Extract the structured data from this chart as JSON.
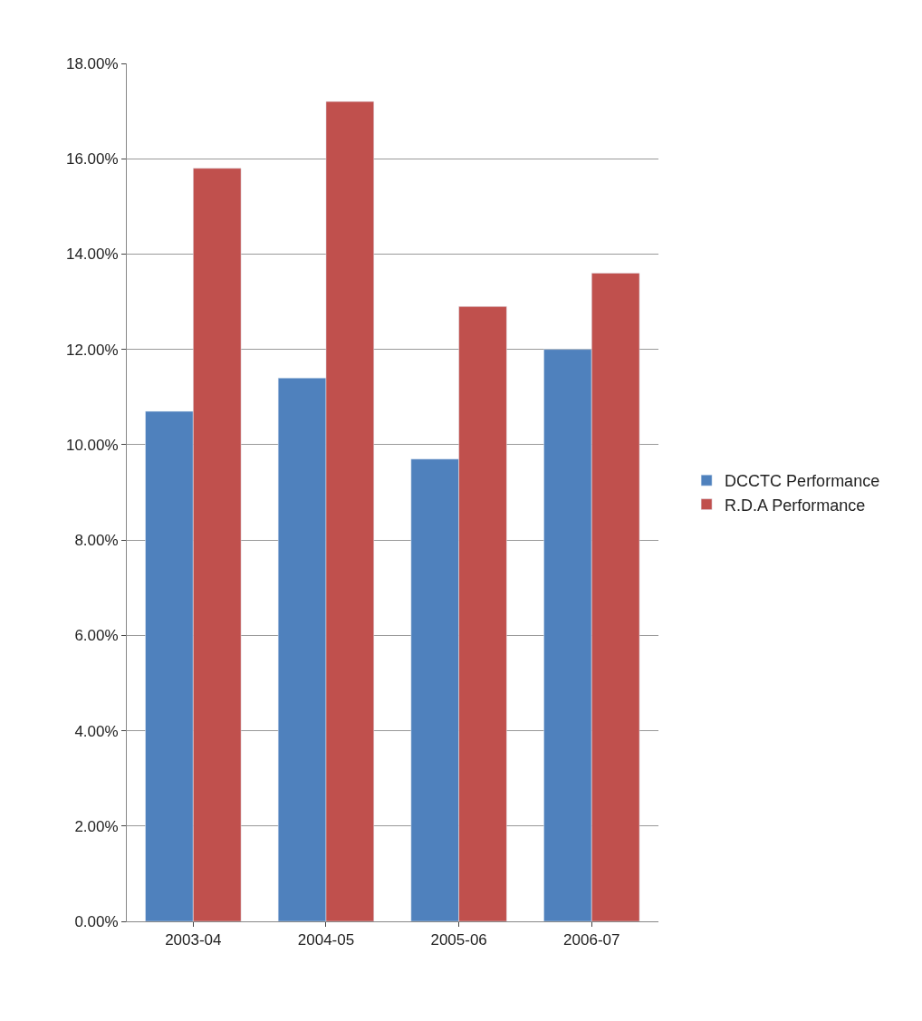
{
  "chart_data": {
    "type": "bar",
    "categories": [
      "2003-04",
      "2004-05",
      "2005-06",
      "2006-07"
    ],
    "series": [
      {
        "name": "DCCTC Performance",
        "color": "#4f81bd",
        "values": [
          10.7,
          11.4,
          9.7,
          12.0
        ]
      },
      {
        "name": "R.D.A Performance",
        "color": "#c0504d",
        "values": [
          15.8,
          17.2,
          12.9,
          13.6
        ]
      }
    ],
    "ylim": [
      0,
      18
    ],
    "yticks": [
      {
        "value": 0,
        "label": "0.00%"
      },
      {
        "value": 2,
        "label": "2.00%"
      },
      {
        "value": 4,
        "label": "4.00%"
      },
      {
        "value": 6,
        "label": "6.00%"
      },
      {
        "value": 8,
        "label": "8.00%"
      },
      {
        "value": 10,
        "label": "10.00%"
      },
      {
        "value": 12,
        "label": "12.00%"
      },
      {
        "value": 14,
        "label": "14.00%"
      },
      {
        "value": 16,
        "label": "16.00%"
      },
      {
        "value": 18,
        "label": "18.00%"
      }
    ],
    "grid": "y",
    "legend": "right"
  }
}
